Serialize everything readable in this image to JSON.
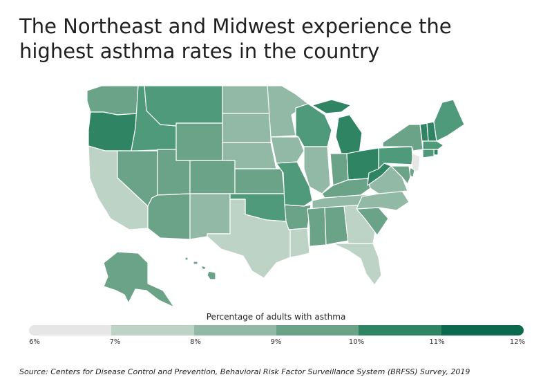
{
  "title_lines": [
    "The Northeast and Midwest experience the",
    "highest asthma rates in the country"
  ],
  "legend": {
    "title": "Percentage of adults with asthma",
    "ticks": [
      "6%",
      "7%",
      "8%",
      "9%",
      "10%",
      "11%",
      "12%"
    ],
    "colors": [
      "#e6e6e6",
      "#bcd3c6",
      "#92b9a5",
      "#6aa387",
      "#4f9a7b",
      "#2e8463",
      "#0b6a4d"
    ]
  },
  "source": "Source:  Centers for Disease Control and Prevention, Behavioral Risk Factor Surveillance System (BRFSS) Survey, 2019",
  "states": [
    {
      "id": "WA",
      "bucket": 3
    },
    {
      "id": "OR",
      "bucket": 5
    },
    {
      "id": "CA",
      "bucket": 1
    },
    {
      "id": "NV",
      "bucket": 3
    },
    {
      "id": "ID",
      "bucket": 4
    },
    {
      "id": "MT",
      "bucket": 4
    },
    {
      "id": "WY",
      "bucket": 3
    },
    {
      "id": "UT",
      "bucket": 3
    },
    {
      "id": "AZ",
      "bucket": 3
    },
    {
      "id": "CO",
      "bucket": 3
    },
    {
      "id": "NM",
      "bucket": 2
    },
    {
      "id": "ND",
      "bucket": 2
    },
    {
      "id": "SD",
      "bucket": 2
    },
    {
      "id": "NE",
      "bucket": 2
    },
    {
      "id": "KS",
      "bucket": 3
    },
    {
      "id": "OK",
      "bucket": 4
    },
    {
      "id": "TX",
      "bucket": 1
    },
    {
      "id": "MN",
      "bucket": 2
    },
    {
      "id": "IA",
      "bucket": 2
    },
    {
      "id": "MO",
      "bucket": 4
    },
    {
      "id": "AR",
      "bucket": 3
    },
    {
      "id": "LA",
      "bucket": 1
    },
    {
      "id": "WI",
      "bucket": 4
    },
    {
      "id": "IL",
      "bucket": 2
    },
    {
      "id": "MI",
      "bucket": 5
    },
    {
      "id": "IN",
      "bucket": 3
    },
    {
      "id": "OH",
      "bucket": 5
    },
    {
      "id": "KY",
      "bucket": 3
    },
    {
      "id": "TN",
      "bucket": 2
    },
    {
      "id": "MS",
      "bucket": 3
    },
    {
      "id": "AL",
      "bucket": 3
    },
    {
      "id": "GA",
      "bucket": 1
    },
    {
      "id": "FL",
      "bucket": 1
    },
    {
      "id": "SC",
      "bucket": 3
    },
    {
      "id": "NC",
      "bucket": 2
    },
    {
      "id": "VA",
      "bucket": 2
    },
    {
      "id": "WV",
      "bucket": 5
    },
    {
      "id": "PA",
      "bucket": 4
    },
    {
      "id": "NY",
      "bucket": 3
    },
    {
      "id": "VT",
      "bucket": 5
    },
    {
      "id": "NH",
      "bucket": 5
    },
    {
      "id": "ME",
      "bucket": 4
    },
    {
      "id": "MA",
      "bucket": 4
    },
    {
      "id": "RI",
      "bucket": 5
    },
    {
      "id": "CT",
      "bucket": 4
    },
    {
      "id": "NJ",
      "bucket": 0
    },
    {
      "id": "DE",
      "bucket": 3
    },
    {
      "id": "MD",
      "bucket": 3
    },
    {
      "id": "AK",
      "bucket": 3
    },
    {
      "id": "HI",
      "bucket": 3
    }
  ]
}
